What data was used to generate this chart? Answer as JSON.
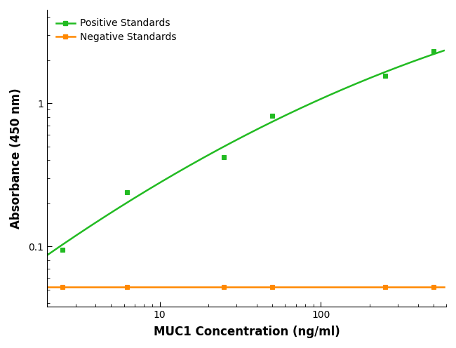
{
  "positive_x": [
    2.5,
    6.25,
    25,
    50,
    250,
    500
  ],
  "positive_y": [
    0.095,
    0.24,
    0.42,
    0.82,
    1.55,
    2.3
  ],
  "negative_x": [
    2.5,
    6.25,
    25,
    50,
    250,
    500
  ],
  "negative_y": [
    0.052,
    0.052,
    0.052,
    0.052,
    0.052,
    0.052
  ],
  "positive_color": "#22bb22",
  "negative_color": "#ff8800",
  "positive_label": "Positive Standards",
  "negative_label": "Negative Standards",
  "xlabel": "MUC1 Concentration (ng/ml)",
  "ylabel": "Absorbance (450 nm)",
  "xlim": [
    2.0,
    600
  ],
  "ylim": [
    0.038,
    4.5
  ],
  "marker": "s",
  "markersize": 5,
  "linewidth": 1.8,
  "background_color": "#ffffff",
  "legend_fontsize": 10,
  "axis_label_fontsize": 12,
  "tick_fontsize": 10
}
